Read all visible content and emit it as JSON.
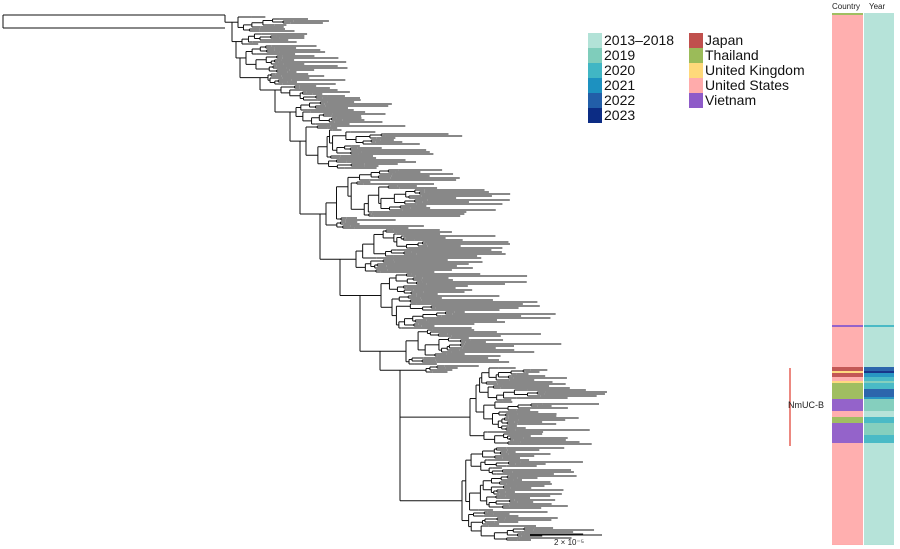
{
  "year_legend": [
    {
      "label": "2013–2018",
      "color": "#b2e2d7"
    },
    {
      "label": "2019",
      "color": "#7fcdbb"
    },
    {
      "label": "2020",
      "color": "#41b6c4"
    },
    {
      "label": "2021",
      "color": "#1d91c0"
    },
    {
      "label": "2022",
      "color": "#225ea8"
    },
    {
      "label": "2023",
      "color": "#0c2c84"
    }
  ],
  "country_legend": [
    {
      "label": "Japan",
      "color": "#c0504d"
    },
    {
      "label": "Thailand",
      "color": "#9bbb59"
    },
    {
      "label": "United Kingdom",
      "color": "#ffd97a"
    },
    {
      "label": "United States",
      "color": "#ffabab"
    },
    {
      "label": "Vietnam",
      "color": "#8e5bc8"
    }
  ],
  "strip_headers": {
    "country": "Country",
    "year": "Year"
  },
  "clade_label": "NmUC-B",
  "clade_color": "#e0392b",
  "scale_bar": "2 × 10⁻⁵",
  "strip_segments": [
    {
      "country": "Thailand",
      "year": "2013–2018",
      "rows": 1
    },
    {
      "country": "United States",
      "year": "2013–2018",
      "rows": 155
    },
    {
      "country": "Vietnam",
      "year": "2020",
      "rows": 1
    },
    {
      "country": "United States",
      "year": "2013–2018",
      "rows": 20
    },
    {
      "country": "Japan",
      "year": "2022",
      "rows": 2
    },
    {
      "country": "United Kingdom",
      "year": "2023",
      "rows": 1
    },
    {
      "country": "Japan",
      "year": "2021",
      "rows": 2
    },
    {
      "country": "United States",
      "year": "2020",
      "rows": 2
    },
    {
      "country": "United Kingdom",
      "year": "2019",
      "rows": 1
    },
    {
      "country": "Thailand",
      "year": "2020",
      "rows": 3
    },
    {
      "country": "Thailand",
      "year": "2022",
      "rows": 4
    },
    {
      "country": "Thailand",
      "year": "2021",
      "rows": 1
    },
    {
      "country": "Vietnam",
      "year": "2019",
      "rows": 6
    },
    {
      "country": "United States",
      "year": "2013–2018",
      "rows": 3
    },
    {
      "country": "Thailand",
      "year": "2020",
      "rows": 3
    },
    {
      "country": "Vietnam",
      "year": "2019",
      "rows": 6
    },
    {
      "country": "Vietnam",
      "year": "2020",
      "rows": 4
    },
    {
      "country": "United States",
      "year": "2013–2018",
      "rows": 51
    }
  ]
}
